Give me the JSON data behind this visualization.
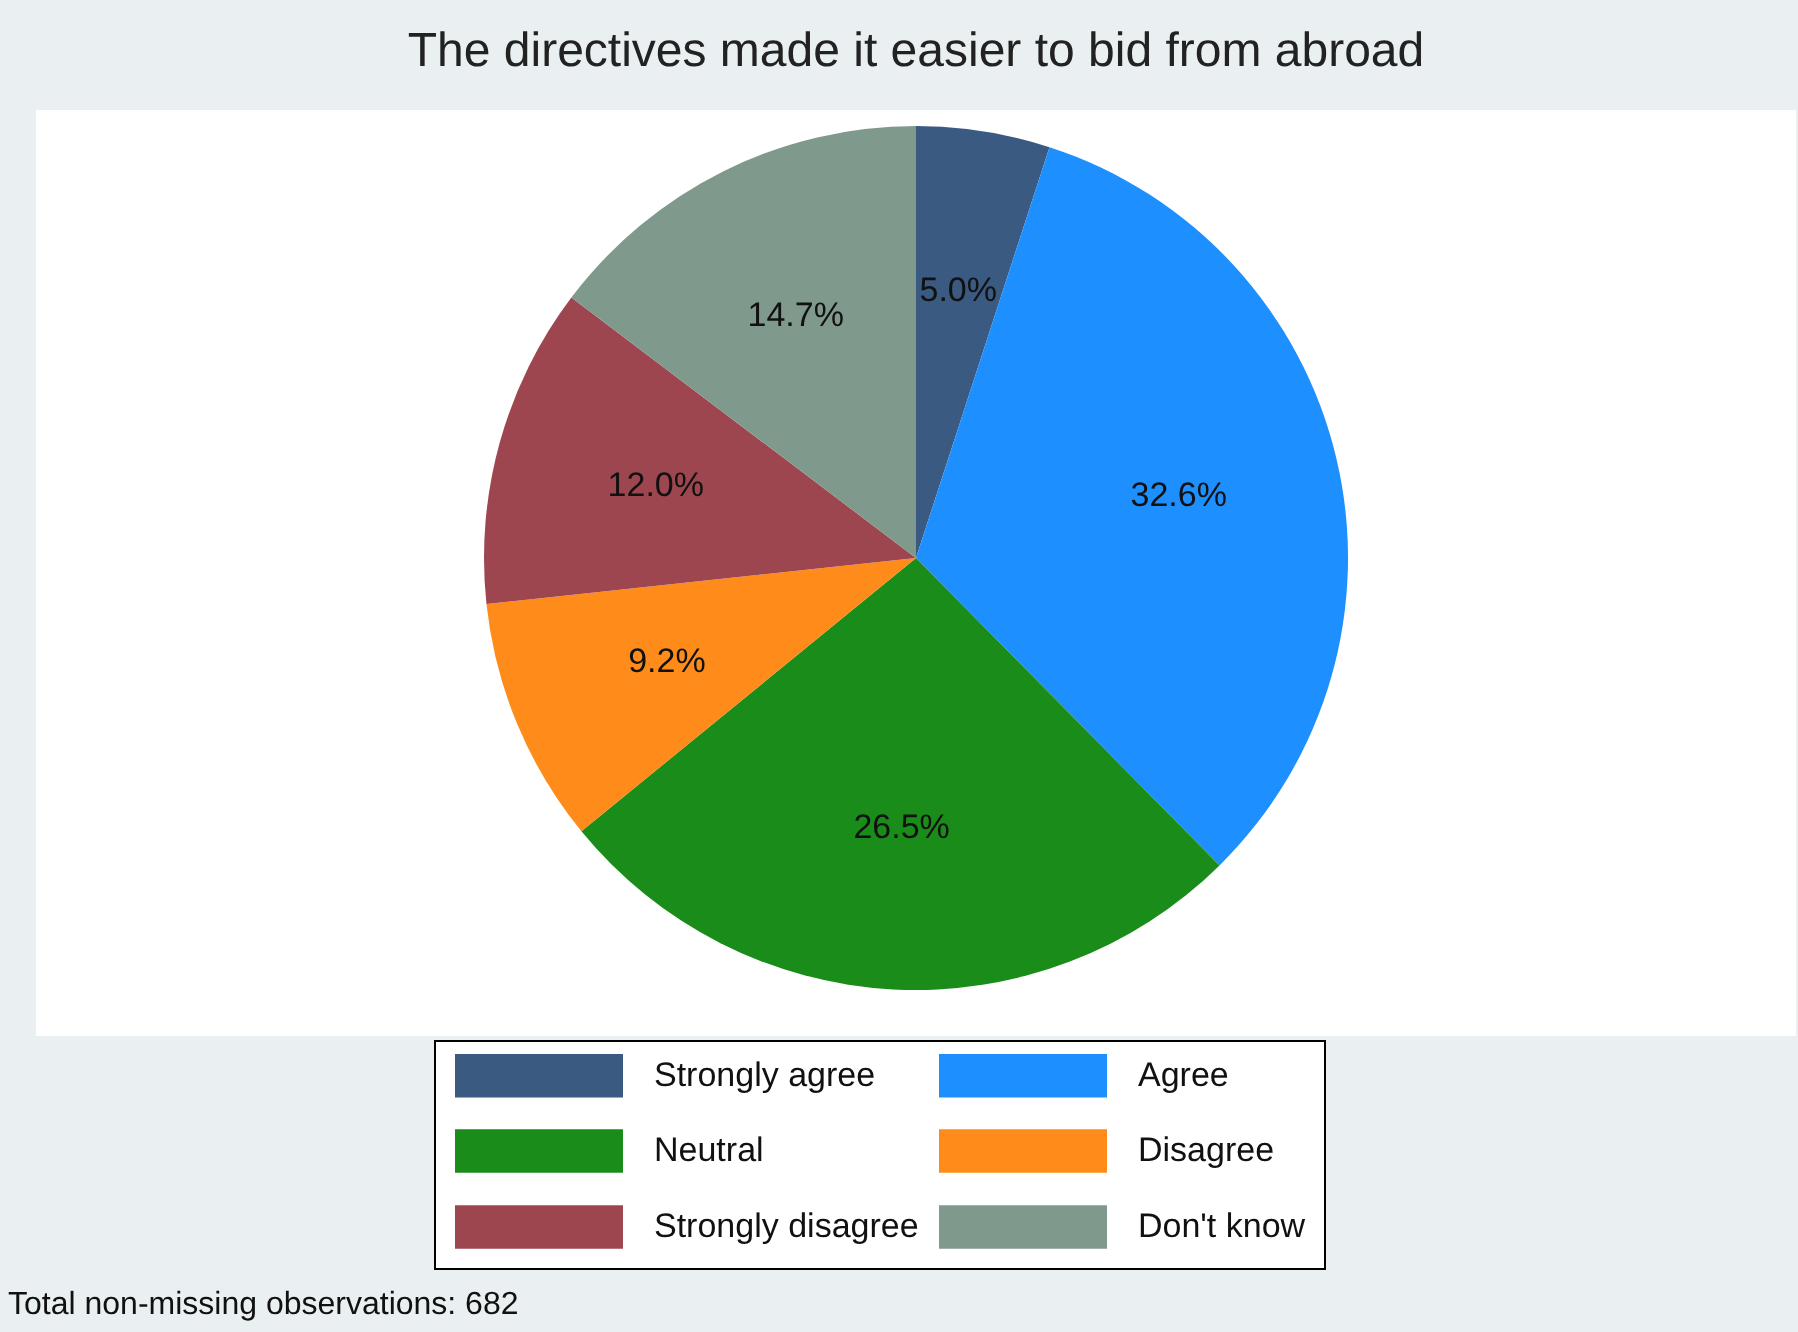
{
  "chart_data": {
    "type": "pie",
    "title": "The directives made it easier to bid from abroad",
    "categories": [
      "Strongly agree",
      "Agree",
      "Neutral",
      "Disagree",
      "Strongly disagree",
      "Don't know"
    ],
    "values": [
      5.0,
      32.6,
      26.5,
      9.2,
      12.0,
      14.7
    ],
    "value_labels": [
      "5.0%",
      "32.6%",
      "26.5%",
      "9.2%",
      "12.0%",
      "14.7%"
    ],
    "colors": [
      "#3a5a82",
      "#1e8fff",
      "#1a8c1a",
      "#ff8c1a",
      "#9e4650",
      "#7f9a8c"
    ],
    "legend": "bottom",
    "annotations": [
      "Total non-missing observations: 682"
    ]
  }
}
